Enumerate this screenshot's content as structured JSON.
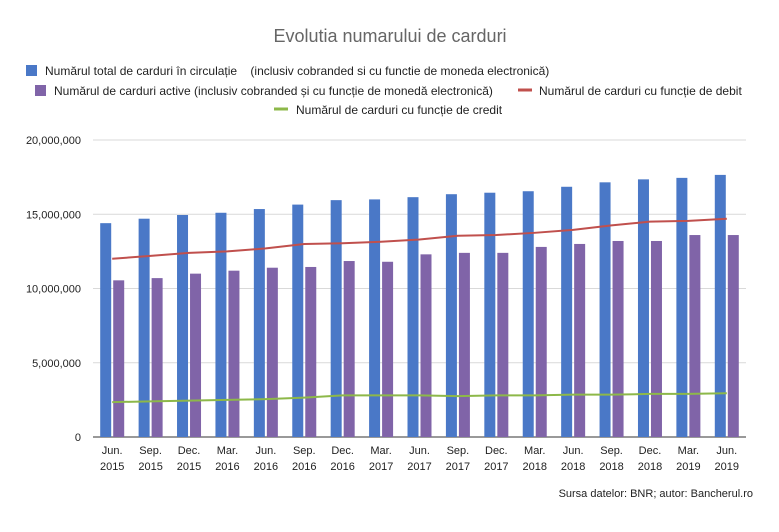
{
  "chart_data": {
    "type": "bar",
    "title": "Evolutia numarului de carduri",
    "categories": [
      [
        "Jun.",
        "2015"
      ],
      [
        "Sep.",
        "2015"
      ],
      [
        "Dec.",
        "2015"
      ],
      [
        "Mar.",
        "2016"
      ],
      [
        "Jun.",
        "2016"
      ],
      [
        "Sep.",
        "2016"
      ],
      [
        "Dec.",
        "2016"
      ],
      [
        "Mar.",
        "2017"
      ],
      [
        "Jun.",
        "2017"
      ],
      [
        "Sep.",
        "2017"
      ],
      [
        "Dec.",
        "2017"
      ],
      [
        "Mar.",
        "2018"
      ],
      [
        "Jun.",
        "2018"
      ],
      [
        "Sep.",
        "2018"
      ],
      [
        "Dec.",
        "2018"
      ],
      [
        "Mar.",
        "2019"
      ],
      [
        "Jun.",
        "2019"
      ]
    ],
    "ylim": [
      0,
      20000000
    ],
    "yticks": [
      "0",
      "5,000,000",
      "10,000,000",
      "15,000,000",
      "20,000,000"
    ],
    "ytick_values": [
      0,
      5000000,
      10000000,
      15000000,
      20000000
    ],
    "grid": true,
    "legend_position": "top",
    "series": [
      {
        "name": "Numărul total de carduri în circulație    (inclusiv cobranded si cu functie de moneda electronică)",
        "kind": "bar",
        "color": "#4A78C7",
        "values": [
          14400000,
          14700000,
          14950000,
          15100000,
          15350000,
          15650000,
          15950000,
          16000000,
          16150000,
          16350000,
          16450000,
          16550000,
          16850000,
          17150000,
          17350000,
          17450000,
          17650000
        ]
      },
      {
        "name": "Numărul de carduri active (inclusiv cobranded și cu funcție de monedă electronică)",
        "kind": "bar",
        "color": "#8064A8",
        "values": [
          10550000,
          10700000,
          11000000,
          11200000,
          11400000,
          11450000,
          11850000,
          11800000,
          12300000,
          12400000,
          12400000,
          12800000,
          13000000,
          13200000,
          13200000,
          13600000,
          13600000
        ]
      },
      {
        "name": "Numărul de carduri cu funcție de debit",
        "kind": "line",
        "color": "#C0504D",
        "values": [
          12000000,
          12200000,
          12400000,
          12500000,
          12700000,
          13000000,
          13050000,
          13150000,
          13300000,
          13550000,
          13600000,
          13750000,
          13950000,
          14250000,
          14500000,
          14550000,
          14700000
        ]
      },
      {
        "name": "Numărul de carduri cu funcție de credit",
        "kind": "line",
        "color": "#8DB849",
        "values": [
          2350000,
          2400000,
          2450000,
          2500000,
          2550000,
          2650000,
          2800000,
          2800000,
          2800000,
          2750000,
          2800000,
          2800000,
          2850000,
          2850000,
          2900000,
          2900000,
          2950000
        ]
      }
    ],
    "source_note": "Sursa datelor: BNR; autor: Bancherul.ro"
  }
}
